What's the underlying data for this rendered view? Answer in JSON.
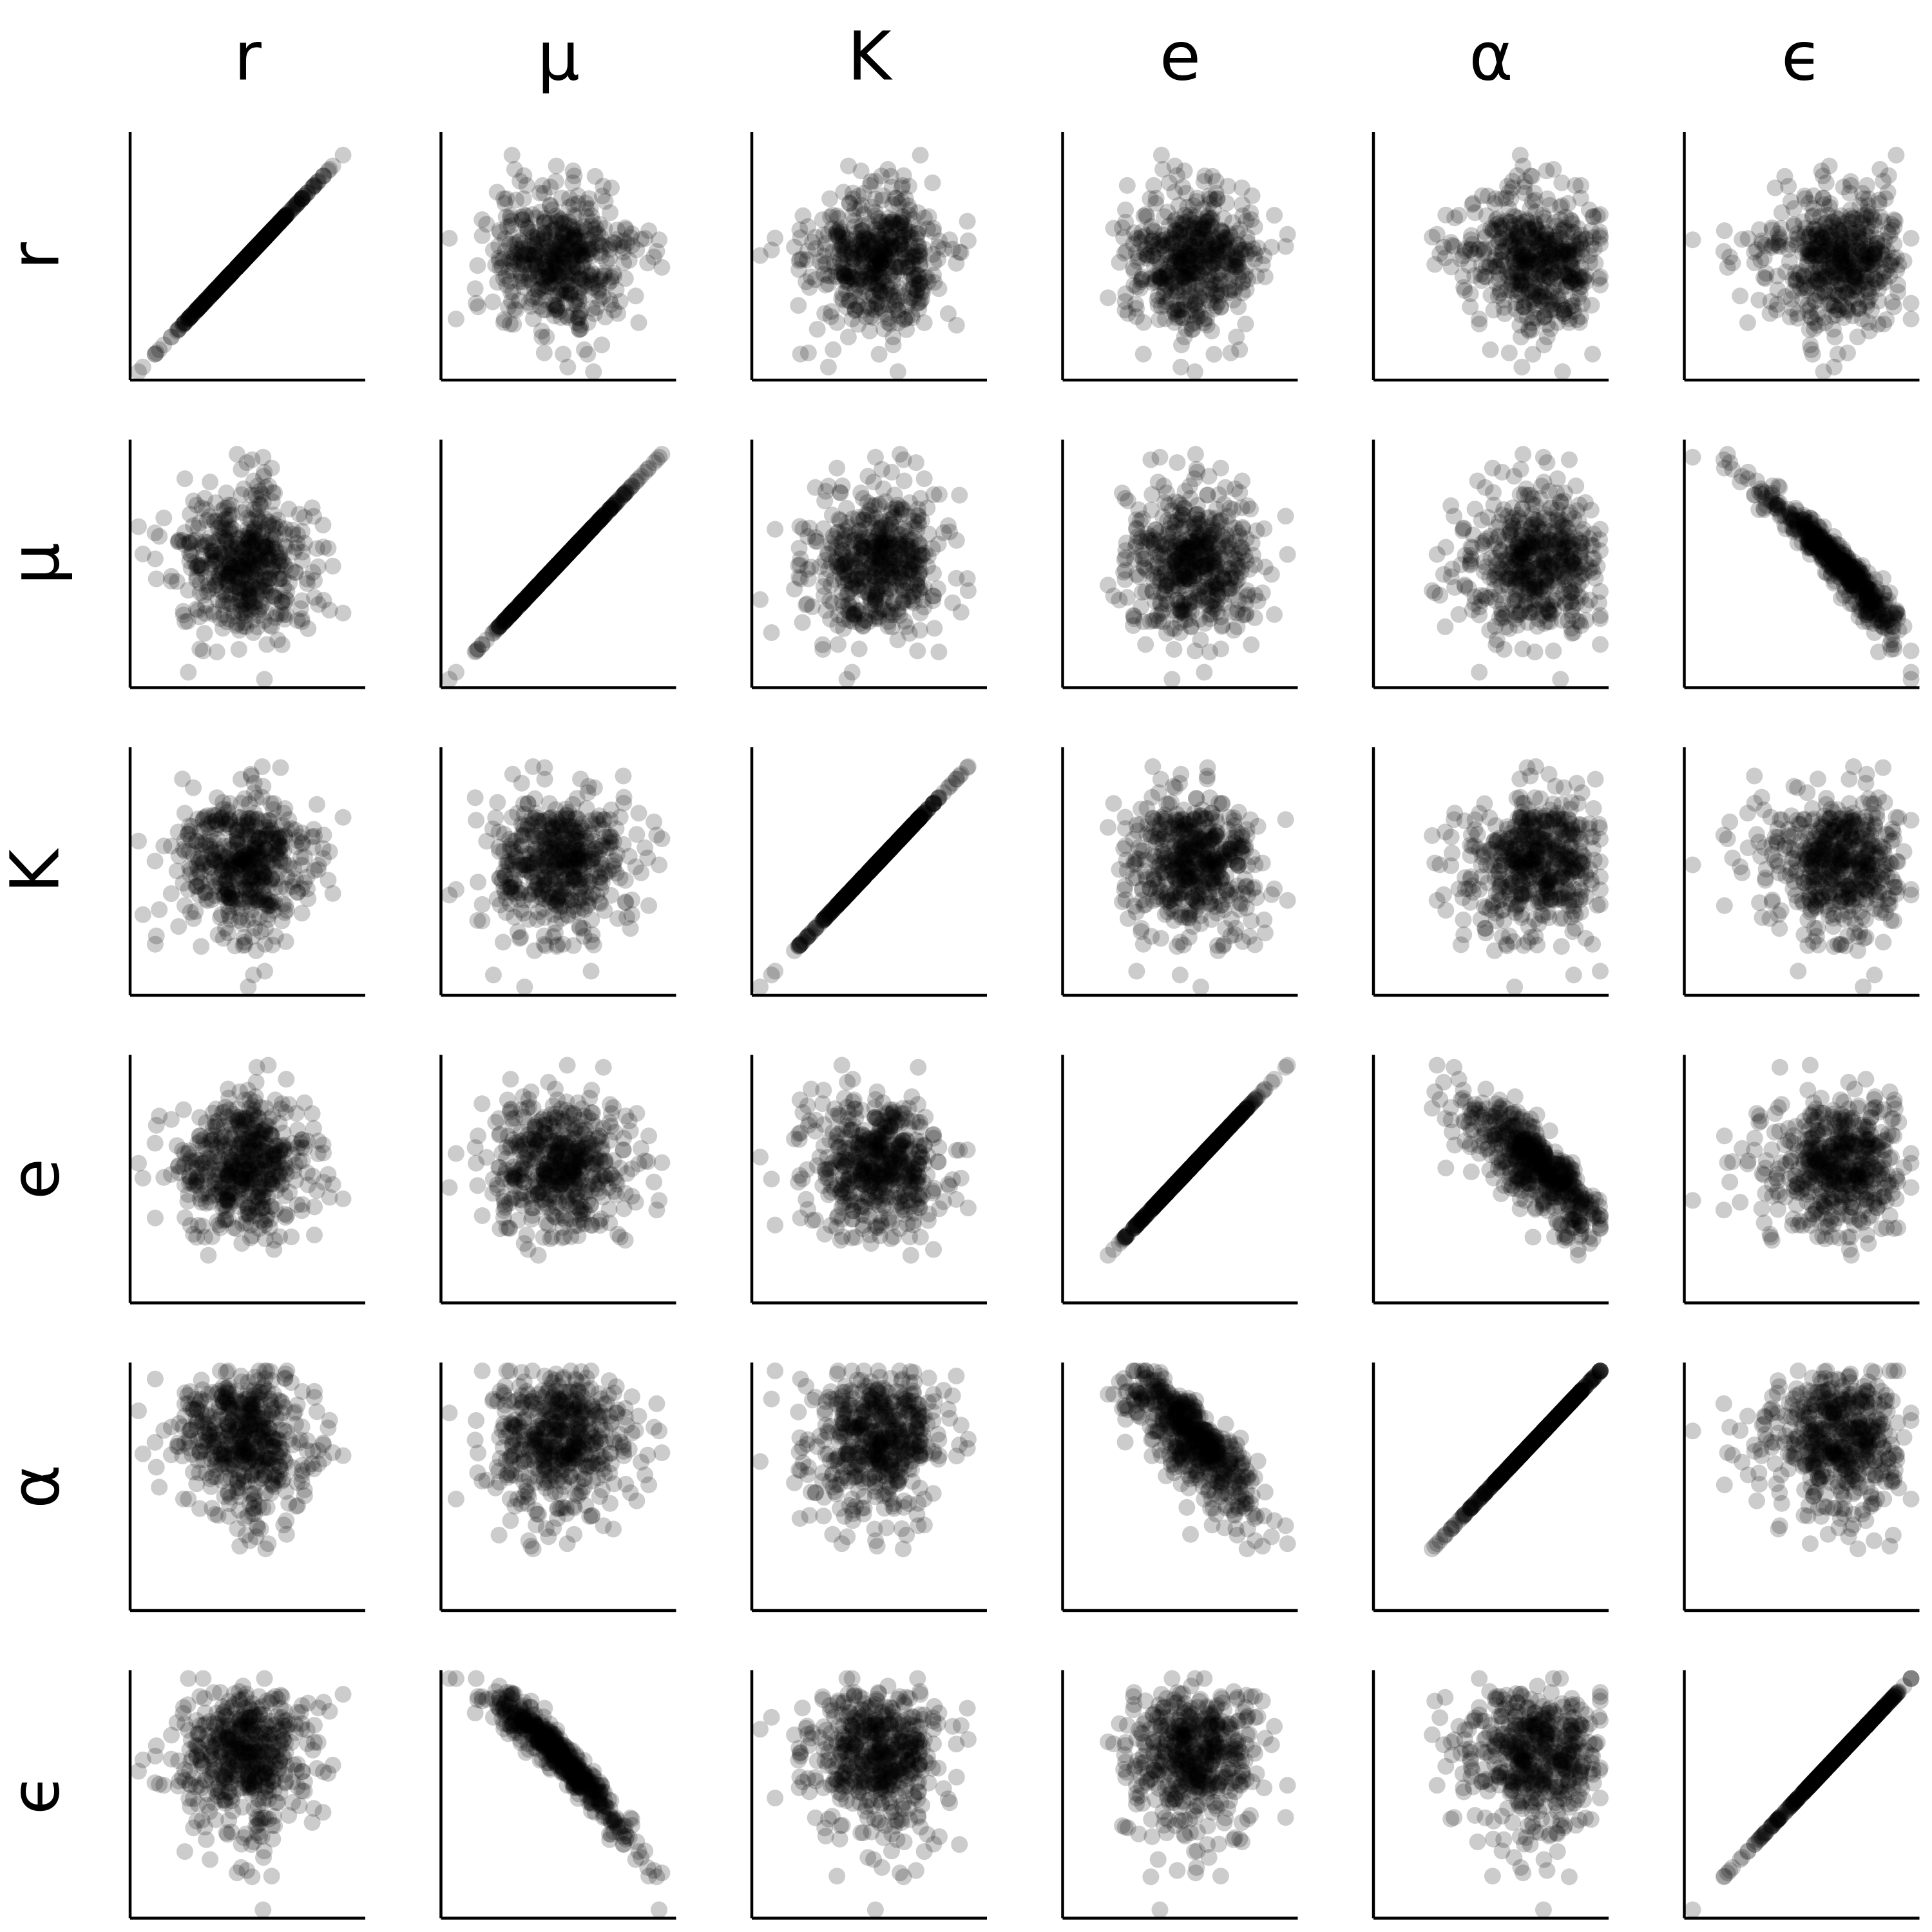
{
  "chart_data": {
    "type": "scatter",
    "layout": "scatter-matrix",
    "variables": [
      "r",
      "μ",
      "K",
      "e",
      "α",
      "ϵ"
    ],
    "n_points_per_panel": 500,
    "axis_ticks": false,
    "grid": false,
    "legend": "none",
    "point_style": {
      "color": "#000000",
      "opacity": 0.2
    },
    "normalized_range": [
      0,
      1
    ],
    "variable_distributions": {
      "r": {
        "mean": 0.48,
        "sd": 0.15
      },
      "μ": {
        "mean": 0.5,
        "sd": 0.16
      },
      "K": {
        "mean": 0.53,
        "sd": 0.15
      },
      "e": {
        "mean": 0.56,
        "sd": 0.15
      },
      "α": {
        "mean": 0.8,
        "sd": 0.18,
        "upper_clip": 1.0
      },
      "ϵ": {
        "mean": 0.6,
        "sd": 0.15
      }
    },
    "relationships": [
      {
        "pair": [
          "μ",
          "ϵ"
        ],
        "shape": "decreasing-curve",
        "strength": "strong"
      },
      {
        "pair": [
          "e",
          "α"
        ],
        "shape": "decreasing-linear",
        "strength": "moderate"
      }
    ],
    "diagonal": "identity"
  }
}
